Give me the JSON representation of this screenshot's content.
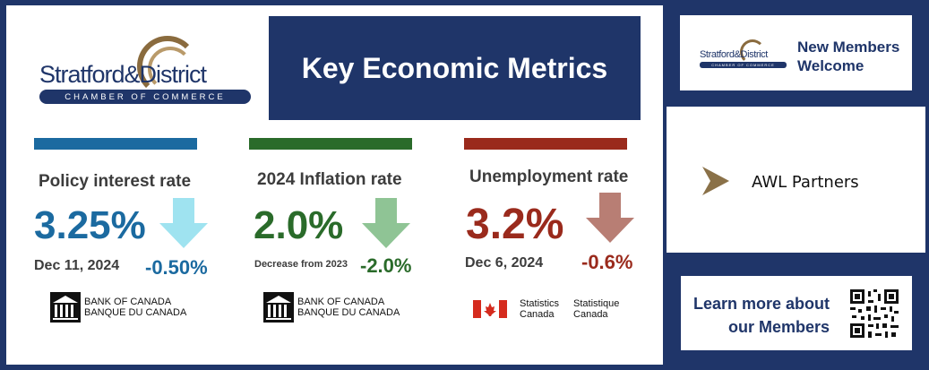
{
  "header": {
    "title": "Key Economic Metrics"
  },
  "logo": {
    "name": "Stratford&District",
    "tagline": "CHAMBER OF COMMERCE"
  },
  "metrics": [
    {
      "label": "Policy interest rate",
      "value": "3.25%",
      "date": "Dec 11, 2024",
      "change": "-0.50%",
      "color": "#1b6aa0",
      "arrow_color": "#9fe3f0",
      "source": [
        "BANK OF CANADA",
        "BANQUE DU CANADA"
      ]
    },
    {
      "label": "2024 Inflation rate",
      "value": "2.0%",
      "date": "Decrease from 2023",
      "change": "-2.0%",
      "color": "#2a6b2a",
      "arrow_color": "#8fc495",
      "source": [
        "BANK OF CANADA",
        "BANQUE DU CANADA"
      ]
    },
    {
      "label": "Unemployment rate",
      "value": "3.2%",
      "date": "Dec 6, 2024",
      "change": "-0.6%",
      "color": "#9a2a1c",
      "arrow_color": "#b87e74",
      "source": [
        "Statistics",
        "Canada",
        "Statistique",
        "Canada"
      ]
    }
  ],
  "sidebar": {
    "members_welcome": [
      "New Members",
      "Welcome"
    ],
    "partner": "AWL Partners",
    "learn_more": [
      "Learn more about",
      "our Members"
    ]
  },
  "colors": {
    "navy": "#1f3569",
    "gold": "#8a6b3e",
    "partner_chevron": "#8a7148",
    "flag_red": "#d52b1e"
  }
}
